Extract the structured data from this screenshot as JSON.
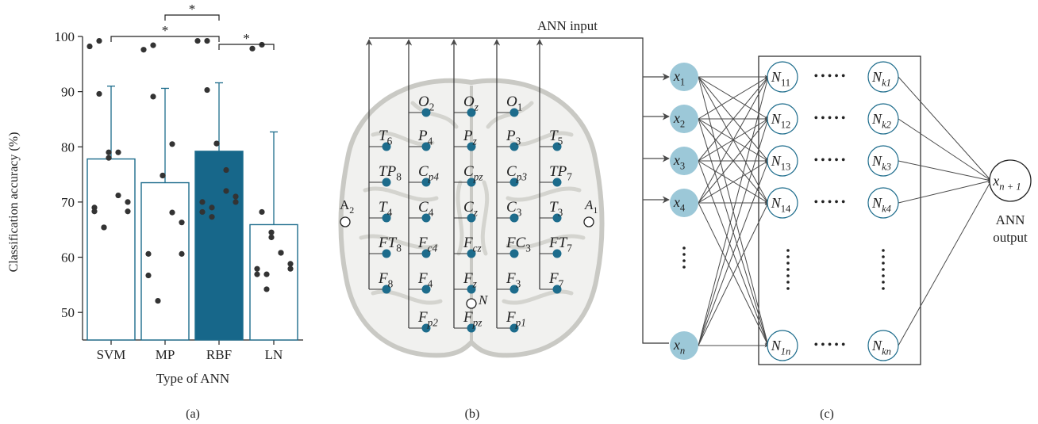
{
  "chart_data": {
    "type": "bar",
    "categories": [
      "SVM",
      "MP",
      "RBF",
      "LN"
    ],
    "values": [
      77.8,
      73.5,
      79.2,
      65.9
    ],
    "error_upper": [
      91.0,
      90.6,
      91.6,
      82.7
    ],
    "points": [
      [
        98.2,
        99.2,
        89.6,
        78.0,
        79.0,
        79.0,
        71.2,
        68.3,
        70.0,
        69.0,
        68.3,
        65.4,
        65.4
      ],
      [
        97.6,
        98.4,
        89.1,
        74.8,
        74.8,
        80.5,
        68.1,
        66.3,
        60.6,
        60.6,
        56.7,
        52.1
      ],
      [
        99.2,
        99.2,
        90.3,
        80.6,
        80.6,
        75.8,
        72.0,
        71.0,
        70.0,
        70.0,
        68.2,
        69.0,
        67.3
      ],
      [
        97.8,
        98.5,
        68.2,
        64.5,
        63.6,
        60.8,
        60.8,
        58.8,
        57.9,
        57.9,
        56.9,
        56.9,
        54.2
      ]
    ],
    "highlight": "RBF",
    "xlabel": "Type of ANN",
    "ylabel": "Classification accuracy (%)",
    "ylim": [
      45,
      100
    ],
    "yticks": [
      50,
      60,
      70,
      80,
      90,
      100
    ],
    "significance": [
      {
        "from": "MP",
        "to": "RBF",
        "label": "*"
      },
      {
        "from": "SVM",
        "to": "RBF",
        "label": "*"
      },
      {
        "from": "RBF",
        "to": "LN",
        "label": "*"
      }
    ],
    "colors": {
      "bar_edge": "#1d6c8c",
      "bar_highlight": "#17678a",
      "points": "#333333"
    }
  },
  "panel_labels": {
    "a": "(a)",
    "b": "(b)",
    "c": "(c)"
  },
  "eeg": {
    "title": "ANN input",
    "references": [
      "A",
      "A"
    ],
    "ground": "N",
    "columns": [
      [
        {
          "l": "T",
          "s": "6"
        },
        {
          "l": "TP",
          "s": "8"
        },
        {
          "l": "T",
          "s": "4"
        },
        {
          "l": "FT",
          "s": "8"
        },
        {
          "l": "F",
          "s": "8"
        }
      ],
      [
        {
          "l": "O",
          "s": "2"
        },
        {
          "l": "P",
          "s": "4"
        },
        {
          "l": "C",
          "s": "p4"
        },
        {
          "l": "C",
          "s": "4"
        },
        {
          "l": "F",
          "s": "c4"
        },
        {
          "l": "F",
          "s": "4"
        },
        {
          "l": "F",
          "s": "p2"
        }
      ],
      [
        {
          "l": "O",
          "s": "z"
        },
        {
          "l": "P",
          "s": "z"
        },
        {
          "l": "C",
          "s": "pz"
        },
        {
          "l": "C",
          "s": "z"
        },
        {
          "l": "F",
          "s": "cz"
        },
        {
          "l": "F",
          "s": "z"
        },
        {
          "l": "F",
          "s": "pz"
        }
      ],
      [
        {
          "l": "O",
          "s": "1"
        },
        {
          "l": "P",
          "s": "3"
        },
        {
          "l": "C",
          "s": "p3"
        },
        {
          "l": "C",
          "s": "3"
        },
        {
          "l": "FC",
          "s": "3"
        },
        {
          "l": "F",
          "s": "3"
        },
        {
          "l": "F",
          "s": "p1"
        }
      ],
      [
        {
          "l": "T",
          "s": "5"
        },
        {
          "l": "TP",
          "s": "7"
        },
        {
          "l": "T",
          "s": "3"
        },
        {
          "l": "FT",
          "s": "7"
        },
        {
          "l": "F",
          "s": "7"
        }
      ]
    ]
  },
  "ann": {
    "inputs": [
      {
        "l": "x",
        "s": "1"
      },
      {
        "l": "x",
        "s": "2"
      },
      {
        "l": "x",
        "s": "3"
      },
      {
        "l": "x",
        "s": "4"
      },
      {
        "l": "x",
        "s": "n"
      }
    ],
    "first_layer": [
      {
        "l": "N",
        "s": "11"
      },
      {
        "l": "N",
        "s": "12"
      },
      {
        "l": "N",
        "s": "13"
      },
      {
        "l": "N",
        "s": "14"
      },
      {
        "l": "N",
        "s": "1n"
      }
    ],
    "last_layer": [
      {
        "l": "N",
        "s": "k1"
      },
      {
        "l": "N",
        "s": "k2"
      },
      {
        "l": "N",
        "s": "k3"
      },
      {
        "l": "N",
        "s": "k4"
      },
      {
        "l": "N",
        "s": "kn"
      }
    ],
    "output": {
      "l": "x",
      "s": "n + 1"
    },
    "output_label": [
      "ANN",
      "output"
    ],
    "colors": {
      "input_fill": "#9cc8d8",
      "electrode": "#1d6c8c",
      "arrow": "#4a4a4a"
    }
  }
}
